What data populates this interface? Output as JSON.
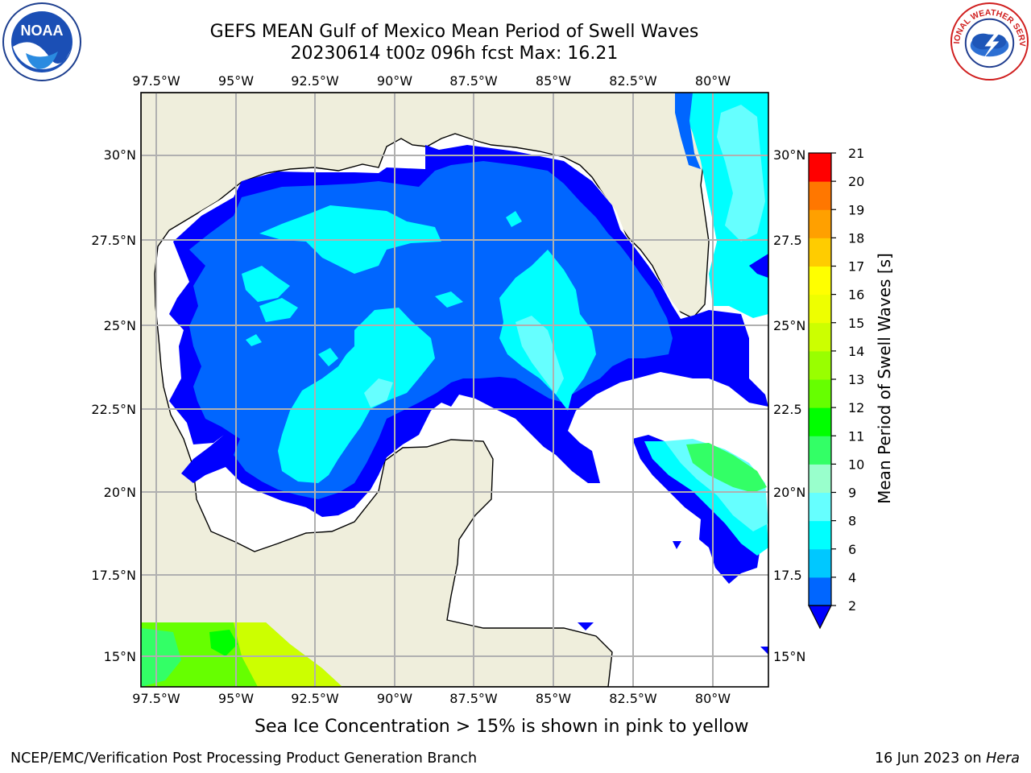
{
  "header": {
    "title": "GEFS MEAN Gulf of Mexico Mean Period of Swell Waves",
    "subtitle": "20230614 t00z 096h fcst   Max: 16.21"
  },
  "logos": {
    "noaa": "NOAA",
    "nws_text": "NATIONAL WEATHER SERVICE"
  },
  "map": {
    "lon_labels": [
      "97.5°W",
      "95°W",
      "92.5°W",
      "90°W",
      "87.5°W",
      "85°W",
      "82.5°W",
      "80°W"
    ],
    "lat_labels_left": [
      "30°N",
      "27.5°N",
      "25°N",
      "22.5°N",
      "20°N",
      "17.5°N",
      "15°N"
    ],
    "lat_labels_right": [
      "30°N",
      "27.5",
      "25°N",
      "22.5",
      "20°N",
      "17.5",
      "15°N"
    ],
    "colors": {
      "land": "#efeedc",
      "ocean_nodata": "#ffffff",
      "grid": "#b0b0b0"
    }
  },
  "colorbar": {
    "label": "Mean Period of Swell Waves [s]",
    "ticks": [
      "2",
      "4",
      "6",
      "8",
      "9",
      "10",
      "11",
      "12",
      "13",
      "14",
      "15",
      "16",
      "17",
      "18",
      "19",
      "20",
      "21"
    ],
    "colors": [
      "#0066ff",
      "#00c8ff",
      "#00ffff",
      "#66ffff",
      "#99ffcc",
      "#33ff66",
      "#00ff00",
      "#66ff00",
      "#99ff00",
      "#ccff00",
      "#eeff00",
      "#ffff00",
      "#ffcc00",
      "#ffa000",
      "#ff7700",
      "#ff4400",
      "#ff0000"
    ],
    "extend_color": "#0000ff"
  },
  "footer": {
    "note": "Sea Ice Concentration > 15% is shown in pink to yellow",
    "org": "NCEP/EMC/Verification Post Processing Product Generation Branch",
    "date": "16 Jun 2023 on ",
    "host": "Hera"
  }
}
